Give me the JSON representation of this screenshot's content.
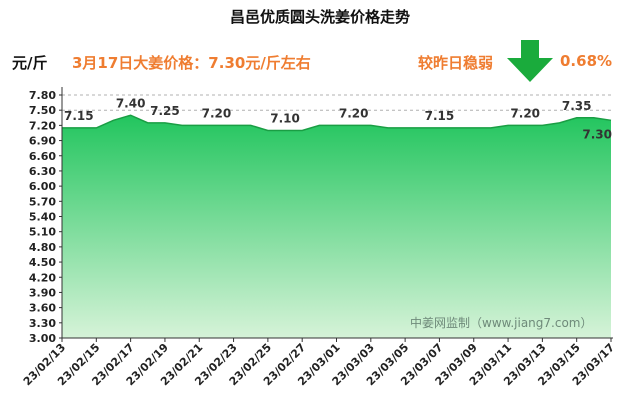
{
  "header": {
    "title": "昌邑优质圆头洗姜价格走势",
    "unit": "元/斤",
    "price_text": "3月17日大姜价格：7.30元/斤左右",
    "change_label": "较昨日稳弱",
    "change_pct": "0.68%",
    "arrow_icon": "down-arrow-icon",
    "arrow_color": "#1aab3c"
  },
  "watermark": "中姜网监制（www.jiang7.com）",
  "colors": {
    "area_top": "#22c55e",
    "area_bottom": "#d6f3d8",
    "line": "#1a9e44",
    "accent": "#ef7d31"
  },
  "chart_data": {
    "type": "area",
    "title": "昌邑优质圆头洗姜价格走势",
    "ylabel": "元/斤",
    "ylim": [
      3.0,
      7.8
    ],
    "yticks": [
      "7.80",
      "7.50",
      "7.20",
      "6.90",
      "6.60",
      "6.30",
      "6.00",
      "5.70",
      "5.40",
      "5.10",
      "4.80",
      "4.50",
      "4.20",
      "3.90",
      "3.60",
      "3.30",
      "3.00"
    ],
    "xticks": [
      "23/02/13",
      "23/02/15",
      "23/02/17",
      "23/02/19",
      "23/02/21",
      "23/02/23",
      "23/02/25",
      "23/02/27",
      "23/03/01",
      "23/03/03",
      "23/03/05",
      "23/03/07",
      "23/03/09",
      "23/03/11",
      "23/03/13",
      "23/03/15",
      "23/03/17"
    ],
    "x": [
      "23/02/13",
      "23/02/14",
      "23/02/15",
      "23/02/16",
      "23/02/17",
      "23/02/18",
      "23/02/19",
      "23/02/20",
      "23/02/21",
      "23/02/22",
      "23/02/23",
      "23/02/24",
      "23/02/25",
      "23/02/26",
      "23/02/27",
      "23/02/28",
      "23/03/01",
      "23/03/02",
      "23/03/03",
      "23/03/04",
      "23/03/05",
      "23/03/06",
      "23/03/07",
      "23/03/08",
      "23/03/09",
      "23/03/10",
      "23/03/11",
      "23/03/12",
      "23/03/13",
      "23/03/14",
      "23/03/15",
      "23/03/16",
      "23/03/17"
    ],
    "values": [
      7.15,
      7.15,
      7.15,
      7.3,
      7.4,
      7.25,
      7.25,
      7.2,
      7.2,
      7.2,
      7.2,
      7.2,
      7.1,
      7.1,
      7.1,
      7.2,
      7.2,
      7.2,
      7.2,
      7.15,
      7.15,
      7.15,
      7.15,
      7.15,
      7.15,
      7.15,
      7.2,
      7.2,
      7.2,
      7.25,
      7.35,
      7.35,
      7.3
    ],
    "data_labels": [
      {
        "x": "23/02/13",
        "text": "7.15"
      },
      {
        "x": "23/02/17",
        "text": "7.40"
      },
      {
        "x": "23/02/19",
        "text": "7.25"
      },
      {
        "x": "23/02/22",
        "text": "7.20"
      },
      {
        "x": "23/02/26",
        "text": "7.10"
      },
      {
        "x": "23/03/02",
        "text": "7.20"
      },
      {
        "x": "23/03/07",
        "text": "7.15"
      },
      {
        "x": "23/03/12",
        "text": "7.20"
      },
      {
        "x": "23/03/15",
        "text": "7.35"
      },
      {
        "x": "23/03/17",
        "text": "7.30"
      }
    ],
    "grid": "dashed-top-only",
    "legend": "none"
  }
}
